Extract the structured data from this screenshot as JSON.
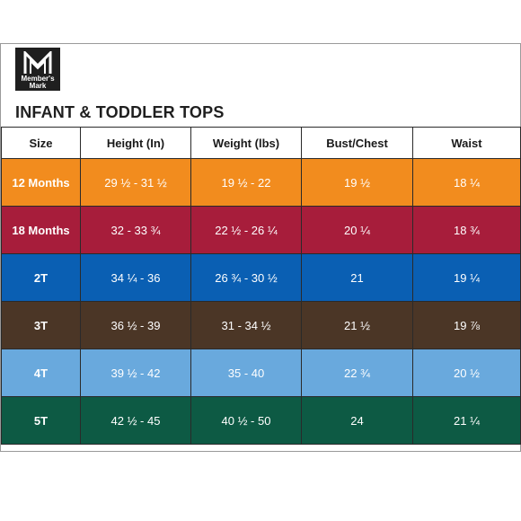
{
  "brand": {
    "line1": "Member's",
    "line2": "Mark",
    "logo_icon": "mm-monogram-icon",
    "logo_bg": "#1f1f1f"
  },
  "title": "INFANT & TODDLER TOPS",
  "columns": [
    "Size",
    "Height (In)",
    "Weight (lbs)",
    "Bust/Chest",
    "Waist"
  ],
  "rows": [
    {
      "size": "12 Months",
      "height": "29 ½ - 31 ½",
      "weight": "19 ½ - 22",
      "bust": "19 ½",
      "waist": "18 ¼",
      "color": "#f28c1e"
    },
    {
      "size": "18 Months",
      "height": "32 - 33 ¾",
      "weight": "22 ½ - 26 ¼",
      "bust": "20 ¼",
      "waist": "18 ¾",
      "color": "#a71d3b"
    },
    {
      "size": "2T",
      "height": "34 ¼ - 36",
      "weight": "26 ¾ - 30 ½",
      "bust": "21",
      "waist": "19 ¼",
      "color": "#0a5fb3"
    },
    {
      "size": "3T",
      "height": "36 ½ - 39",
      "weight": "31 - 34 ½",
      "bust": "21 ½",
      "waist": "19 ⅞",
      "color": "#4b3626"
    },
    {
      "size": "4T",
      "height": "39 ½ - 42",
      "weight": "35 - 40",
      "bust": "22 ¾",
      "waist": "20 ½",
      "color": "#69a9dd"
    },
    {
      "size": "5T",
      "height": "42 ½ - 45",
      "weight": "40 ½ - 50",
      "bust": "24",
      "waist": "21 ¼",
      "color": "#0d5a44"
    }
  ]
}
